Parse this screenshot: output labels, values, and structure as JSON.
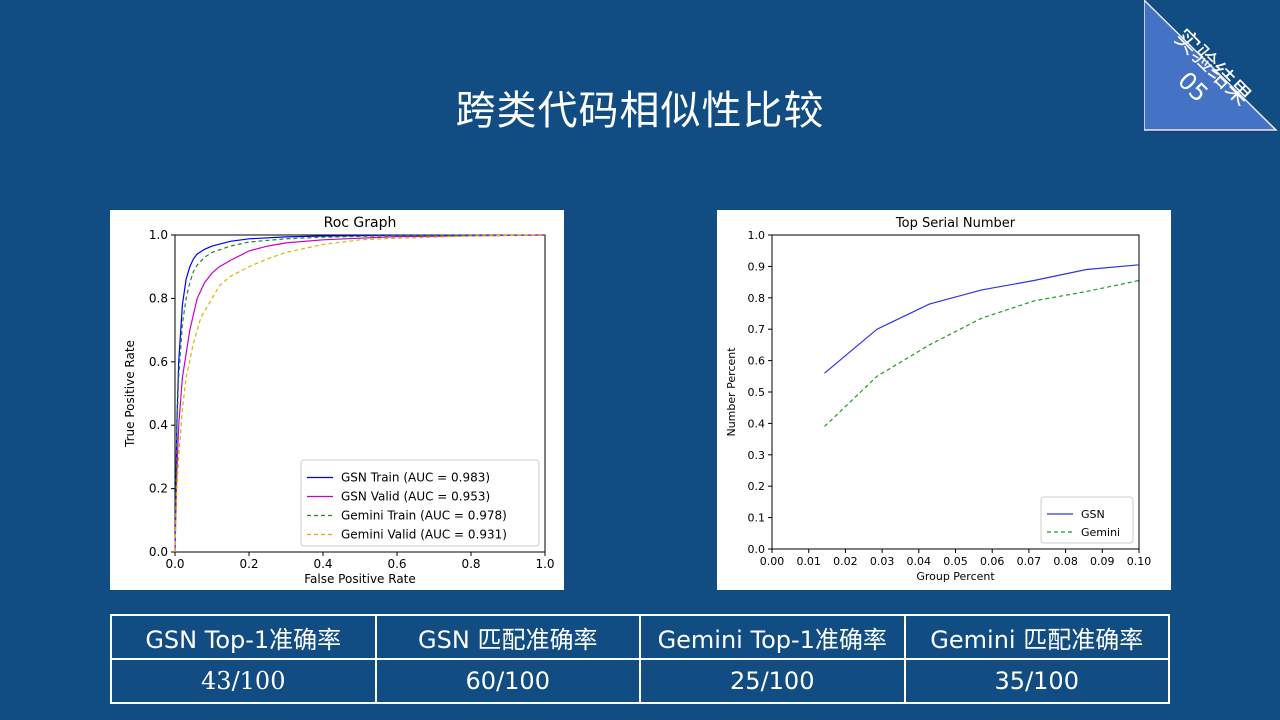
{
  "slide": {
    "title": "跨类代码相似性比较",
    "corner_label": "实验结果",
    "corner_number": "05"
  },
  "colors": {
    "background": "#114c82",
    "corner": "#4472c4",
    "gsn_train": "#0000ff",
    "gsn_valid": "#cc00cc",
    "gemini_train": "#228b22",
    "gemini_valid": "#ccbb00"
  },
  "table": {
    "headers": [
      "GSN Top-1准确率",
      "GSN 匹配准确率",
      "Gemini Top-1准确率",
      "Gemini 匹配准确率"
    ],
    "values": [
      "43/100",
      "60/100",
      "25/100",
      "35/100"
    ]
  },
  "chart_data": [
    {
      "type": "line",
      "title": "Roc Graph",
      "xlabel": "False Positive Rate",
      "ylabel": "True Positive Rate",
      "xlim": [
        0,
        1
      ],
      "ylim": [
        0,
        1
      ],
      "xticks": [
        "0.0",
        "0.2",
        "0.4",
        "0.6",
        "0.8",
        "1.0"
      ],
      "yticks": [
        "0.0",
        "0.2",
        "0.4",
        "0.6",
        "0.8",
        "1.0"
      ],
      "grid": false,
      "legend": "lower-right",
      "series": [
        {
          "name": "GSN Train (AUC = 0.983)",
          "style": "solid",
          "color": "#0000ff",
          "x": [
            0,
            0.005,
            0.01,
            0.02,
            0.03,
            0.04,
            0.05,
            0.06,
            0.08,
            0.1,
            0.15,
            0.2,
            0.3,
            0.4,
            0.6,
            1.0
          ],
          "y": [
            0,
            0.4,
            0.6,
            0.78,
            0.86,
            0.9,
            0.925,
            0.94,
            0.955,
            0.965,
            0.98,
            0.988,
            0.994,
            0.997,
            0.999,
            1.0
          ]
        },
        {
          "name": "GSN Valid (AUC = 0.953)",
          "style": "solid",
          "color": "#cc00cc",
          "x": [
            0,
            0.005,
            0.01,
            0.02,
            0.04,
            0.06,
            0.08,
            0.1,
            0.12,
            0.15,
            0.2,
            0.25,
            0.3,
            0.4,
            0.5,
            0.6,
            1.0
          ],
          "y": [
            0,
            0.25,
            0.4,
            0.55,
            0.7,
            0.8,
            0.85,
            0.88,
            0.9,
            0.92,
            0.95,
            0.965,
            0.975,
            0.985,
            0.99,
            0.995,
            1.0
          ]
        },
        {
          "name": "Gemini Train (AUC = 0.978)",
          "style": "dashed",
          "color": "#228b22",
          "x": [
            0,
            0.005,
            0.01,
            0.02,
            0.03,
            0.04,
            0.05,
            0.06,
            0.08,
            0.1,
            0.15,
            0.2,
            0.3,
            0.4,
            0.6,
            1.0
          ],
          "y": [
            0,
            0.38,
            0.55,
            0.72,
            0.8,
            0.85,
            0.885,
            0.905,
            0.93,
            0.945,
            0.965,
            0.978,
            0.988,
            0.993,
            0.998,
            1.0
          ]
        },
        {
          "name": "Gemini Valid (AUC = 0.931)",
          "style": "dashed",
          "color": "#ccbb00",
          "x": [
            0,
            0.005,
            0.01,
            0.02,
            0.03,
            0.05,
            0.07,
            0.1,
            0.12,
            0.15,
            0.2,
            0.25,
            0.3,
            0.4,
            0.5,
            0.6,
            0.8,
            1.0
          ],
          "y": [
            0,
            0.2,
            0.3,
            0.45,
            0.55,
            0.66,
            0.74,
            0.8,
            0.84,
            0.87,
            0.9,
            0.925,
            0.945,
            0.97,
            0.985,
            0.99,
            0.997,
            1.0
          ]
        }
      ]
    },
    {
      "type": "line",
      "title": "Top Serial Number",
      "xlabel": "Group Percent",
      "ylabel": "Number Percent",
      "xlim": [
        0,
        0.1
      ],
      "ylim": [
        0,
        1
      ],
      "xticks": [
        "0.00",
        "0.01",
        "0.02",
        "0.03",
        "0.04",
        "0.05",
        "0.06",
        "0.07",
        "0.08",
        "0.09",
        "0.10"
      ],
      "yticks": [
        "0.0",
        "0.1",
        "0.2",
        "0.3",
        "0.4",
        "0.5",
        "0.6",
        "0.7",
        "0.8",
        "0.9",
        "1.0"
      ],
      "grid": false,
      "legend": "lower-right",
      "series": [
        {
          "name": "GSN",
          "style": "solid",
          "color": "#3333dd",
          "x": [
            0.0143,
            0.0286,
            0.0429,
            0.0571,
            0.0714,
            0.0857,
            0.1
          ],
          "y": [
            0.56,
            0.7,
            0.78,
            0.825,
            0.855,
            0.89,
            0.905
          ]
        },
        {
          "name": "Gemini",
          "style": "dashed",
          "color": "#229922",
          "x": [
            0.0143,
            0.0286,
            0.0429,
            0.0571,
            0.0714,
            0.0857,
            0.1
          ],
          "y": [
            0.39,
            0.55,
            0.65,
            0.735,
            0.79,
            0.82,
            0.855
          ]
        }
      ]
    }
  ]
}
